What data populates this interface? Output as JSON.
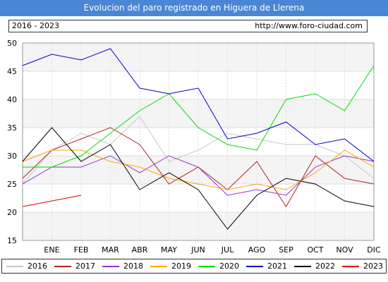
{
  "header": {
    "title": "Evolucion del paro registrado en Higuera de Llerena",
    "period": "2016 - 2023",
    "url": "http://www.foro-ciudad.com"
  },
  "chart_data": {
    "type": "line",
    "categories": [
      "",
      "ENE",
      "FEB",
      "MAR",
      "ABR",
      "MAY",
      "JUN",
      "JUL",
      "AGO",
      "SEP",
      "OCT",
      "NOV",
      "DIC"
    ],
    "ylim": [
      15,
      50
    ],
    "yticks": [
      15,
      20,
      25,
      30,
      35,
      40,
      45,
      50
    ],
    "grid": true,
    "legend_position": "bottom",
    "series": [
      {
        "name": "2016",
        "color": "#c8c8c8",
        "values": [
          25,
          31,
          34,
          32,
          37,
          29,
          31,
          34,
          33,
          32,
          32,
          30,
          26
        ]
      },
      {
        "name": "2017",
        "color": "#b22222",
        "values": [
          26,
          31,
          33,
          35,
          32,
          25,
          28,
          24,
          29,
          21,
          30,
          26,
          25
        ]
      },
      {
        "name": "2018",
        "color": "#9932cc",
        "values": [
          25,
          28,
          28,
          30,
          27,
          30,
          28,
          23,
          24,
          23,
          28,
          30,
          29
        ]
      },
      {
        "name": "2019",
        "color": "#ffa500",
        "values": [
          29,
          31,
          31,
          29,
          28,
          26,
          25,
          24,
          25,
          24,
          27,
          31,
          28
        ]
      },
      {
        "name": "2020",
        "color": "#00dd00",
        "values": [
          28,
          28,
          30,
          34,
          38,
          41,
          35,
          32,
          31,
          40,
          41,
          38,
          46
        ]
      },
      {
        "name": "2021",
        "color": "#0000cc",
        "values": [
          46,
          48,
          47,
          49,
          42,
          41,
          42,
          33,
          34,
          36,
          32,
          33,
          29
        ]
      },
      {
        "name": "2022",
        "color": "#000000",
        "values": [
          29,
          35,
          29,
          32,
          24,
          27,
          24,
          17,
          23,
          26,
          25,
          22,
          21
        ]
      },
      {
        "name": "2023",
        "color": "#dd0000",
        "values": [
          21,
          22,
          23,
          null,
          null,
          null,
          null,
          null,
          null,
          null,
          null,
          null,
          null
        ]
      }
    ]
  }
}
